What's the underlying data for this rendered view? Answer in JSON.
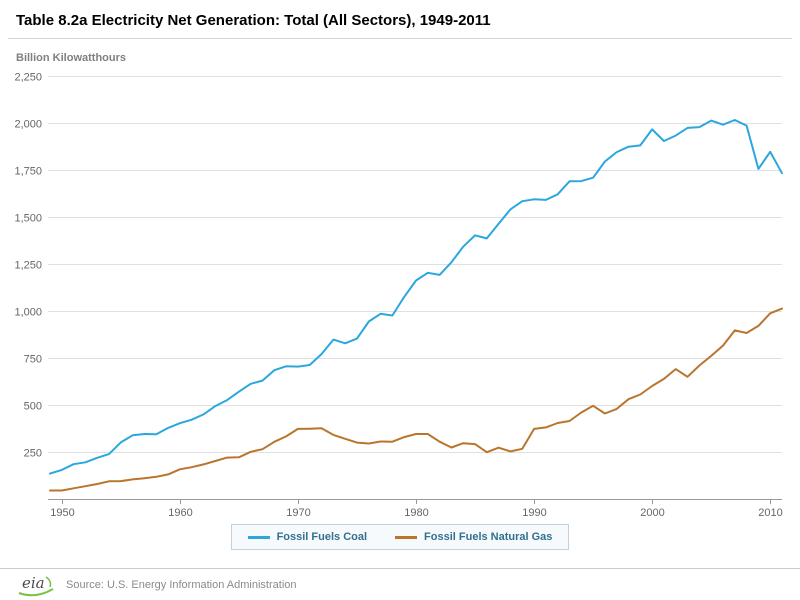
{
  "chart_data": {
    "type": "line",
    "title": "Table 8.2a Electricity Net Generation: Total (All Sectors), 1949-2011",
    "ylabel": "Billion Kilowatthours",
    "xlim": [
      1949,
      2011
    ],
    "ylim": [
      0,
      2250
    ],
    "yticks": [
      250,
      500,
      750,
      1000,
      1250,
      1500,
      1750,
      2000,
      2250
    ],
    "xticks": [
      1950,
      1960,
      1970,
      1980,
      1990,
      2000,
      2010
    ],
    "grid": true,
    "legend_position": "bottom",
    "x": [
      1949,
      1950,
      1951,
      1952,
      1953,
      1954,
      1955,
      1956,
      1957,
      1958,
      1959,
      1960,
      1961,
      1962,
      1963,
      1964,
      1965,
      1966,
      1967,
      1968,
      1969,
      1970,
      1971,
      1972,
      1973,
      1974,
      1975,
      1976,
      1977,
      1978,
      1979,
      1980,
      1981,
      1982,
      1983,
      1984,
      1985,
      1986,
      1987,
      1988,
      1989,
      1990,
      1991,
      1992,
      1993,
      1994,
      1995,
      1996,
      1997,
      1998,
      1999,
      2000,
      2001,
      2002,
      2003,
      2004,
      2005,
      2006,
      2007,
      2008,
      2009,
      2010,
      2011
    ],
    "series": [
      {
        "name": "Fossil Fuels Coal",
        "color": "#2ba7de",
        "values": [
          135,
          155,
          185,
          195,
          219,
          239,
          301,
          339,
          346,
          344,
          378,
          403,
          422,
          450,
          494,
          526,
          571,
          613,
          630,
          685,
          706,
          704,
          713,
          771,
          848,
          828,
          853,
          944,
          985,
          976,
          1075,
          1162,
          1203,
          1192,
          1259,
          1342,
          1402,
          1386,
          1464,
          1541,
          1584,
          1594,
          1591,
          1621,
          1690,
          1691,
          1709,
          1795,
          1845,
          1874,
          1881,
          1966,
          1904,
          1933,
          1974,
          1978,
          2013,
          1991,
          2016,
          1986,
          1756,
          1847,
          1733
        ]
      },
      {
        "name": "Fossil Fuels Natural Gas",
        "color": "#ba752c",
        "values": [
          45,
          45,
          57,
          68,
          80,
          94,
          95,
          104,
          110,
          118,
          131,
          158,
          169,
          184,
          202,
          220,
          222,
          251,
          265,
          304,
          333,
          373,
          374,
          376,
          341,
          320,
          300,
          295,
          306,
          305,
          329,
          346,
          346,
          305,
          274,
          297,
          292,
          249,
          273,
          253,
          267,
          373,
          381,
          404,
          415,
          460,
          496,
          455,
          479,
          531,
          556,
          601,
          639,
          691,
          650,
          710,
          761,
          816,
          897,
          883,
          921,
          988,
          1013
        ]
      }
    ],
    "grid_color": "#e0e0e0",
    "axis_color": "#999999"
  },
  "footer": {
    "logo_text": "eia",
    "source": "Source: U.S. Energy Information Administration"
  }
}
